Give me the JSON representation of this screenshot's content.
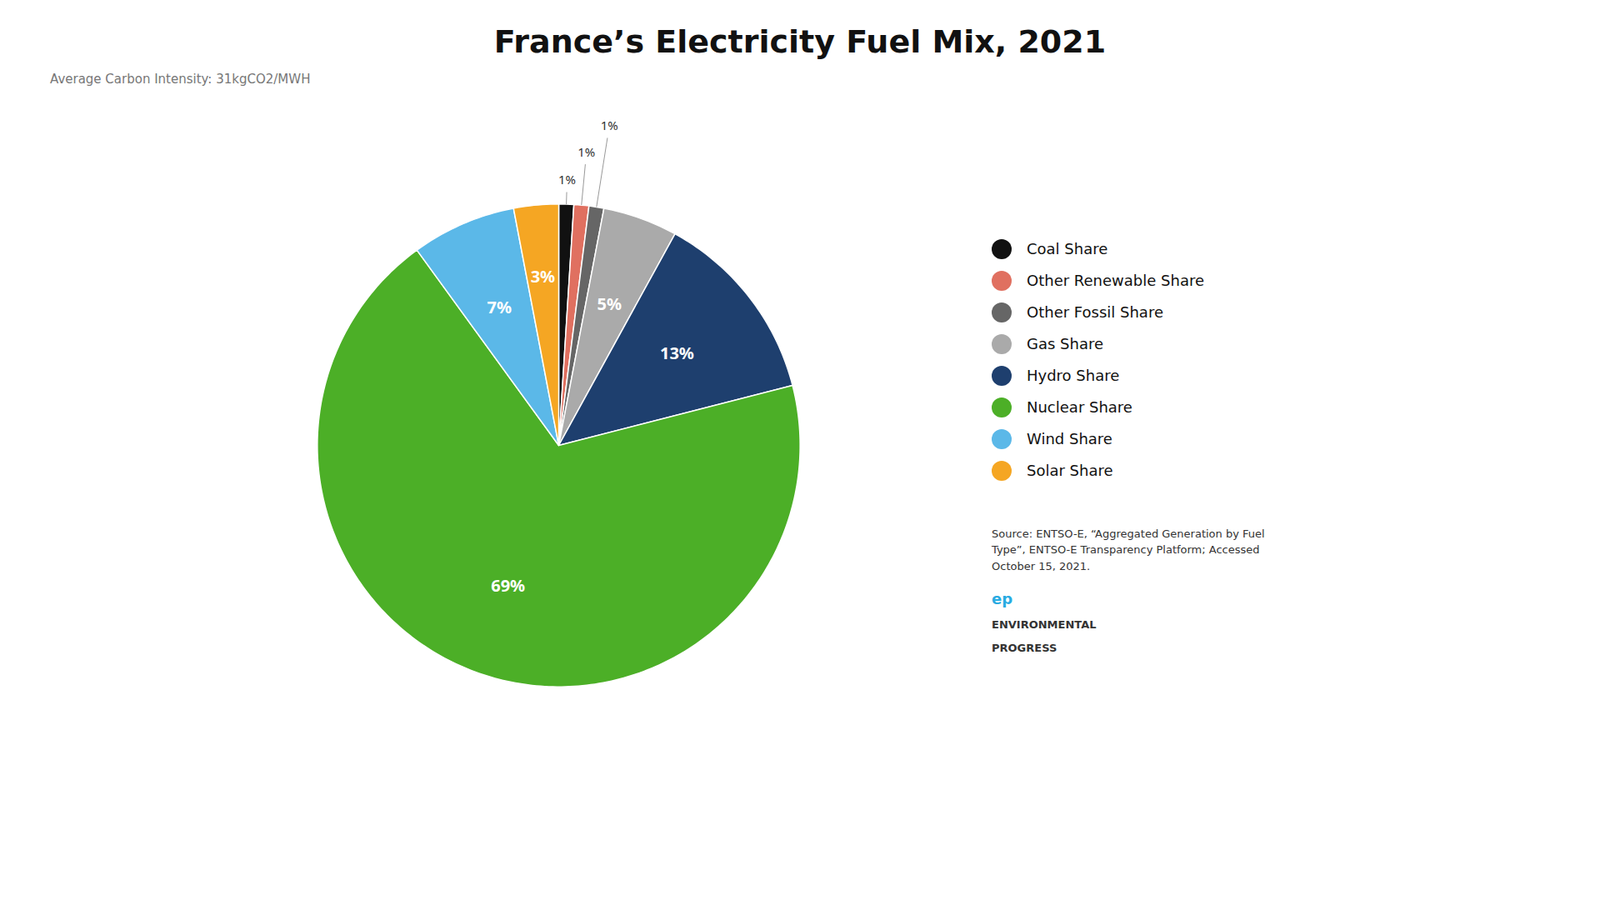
{
  "chart_data": {
    "type": "pie",
    "title": "France’s Electricity Fuel Mix, 2021",
    "subtitle": "Average Carbon Intensity: 31kgCO2/MWH",
    "categories": [
      "Coal Share",
      "Other Renewable Share",
      "Other Fossil Share",
      "Gas Share",
      "Hydro Share",
      "Nuclear Share",
      "Wind Share",
      "Solar Share"
    ],
    "values": [
      1,
      1,
      1,
      5,
      13,
      69,
      7,
      3
    ],
    "value_labels": [
      "1%",
      "1%",
      "1%",
      "5%",
      "13%",
      "69%",
      "7%",
      "3%"
    ],
    "colors": [
      "#111111",
      "#e07060",
      "#666666",
      "#aaaaaa",
      "#1e3f6e",
      "#4caf27",
      "#5bb8e8",
      "#f5a623"
    ],
    "data_labels": true,
    "legend": "right",
    "annotations": [
      "Source: ENTSO-E, “Aggregated Generation by Fuel\nType”, ENTSO-E Transparency Platform; Accessed\nOctober 15, 2021.",
      "ep",
      "ENVIRONMENTAL",
      "PROGRESS"
    ]
  }
}
